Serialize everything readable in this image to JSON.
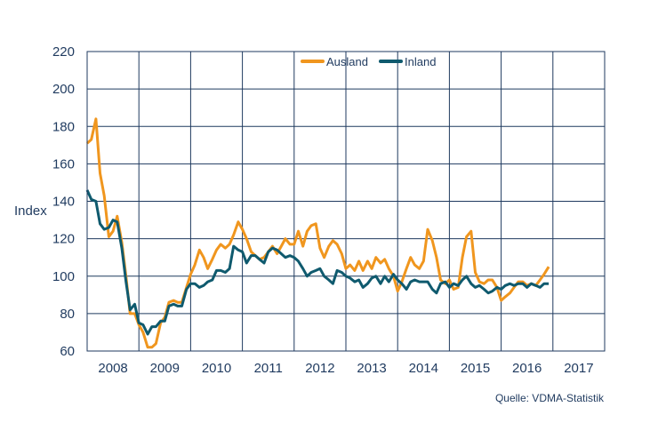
{
  "chart_data": {
    "type": "line",
    "ylabel": "Index",
    "ylim": [
      60,
      220
    ],
    "yticks": [
      60,
      80,
      100,
      120,
      140,
      160,
      180,
      200,
      220
    ],
    "xlim": [
      2008,
      2018
    ],
    "xticks": [
      "2008",
      "2009",
      "2010",
      "2011",
      "2012",
      "2013",
      "2014",
      "2015",
      "2016",
      "2017"
    ],
    "grid": true,
    "legend": "top-center",
    "source": "Quelle: VDMA-Statistik",
    "series": [
      {
        "name": "Ausland",
        "color": "#f0961e",
        "x": [
          2008.0,
          2008.08,
          2008.17,
          2008.25,
          2008.33,
          2008.42,
          2008.5,
          2008.58,
          2008.67,
          2008.75,
          2008.83,
          2008.92,
          2009.0,
          2009.08,
          2009.17,
          2009.25,
          2009.33,
          2009.42,
          2009.5,
          2009.58,
          2009.67,
          2009.75,
          2009.83,
          2009.92,
          2010.0,
          2010.08,
          2010.17,
          2010.25,
          2010.33,
          2010.42,
          2010.5,
          2010.58,
          2010.67,
          2010.75,
          2010.83,
          2010.92,
          2011.0,
          2011.08,
          2011.17,
          2011.25,
          2011.33,
          2011.42,
          2011.5,
          2011.58,
          2011.67,
          2011.75,
          2011.83,
          2011.92,
          2012.0,
          2012.08,
          2012.17,
          2012.25,
          2012.33,
          2012.42,
          2012.5,
          2012.58,
          2012.67,
          2012.75,
          2012.83,
          2012.92,
          2013.0,
          2013.08,
          2013.17,
          2013.25,
          2013.33,
          2013.42,
          2013.5,
          2013.58,
          2013.67,
          2013.75,
          2013.83,
          2013.92,
          2014.0,
          2014.08,
          2014.17,
          2014.25,
          2014.33,
          2014.42,
          2014.5,
          2014.58,
          2014.67,
          2014.75,
          2014.83,
          2014.92,
          2015.0,
          2015.08,
          2015.17,
          2015.25,
          2015.33,
          2015.42,
          2015.5,
          2015.58,
          2015.67,
          2015.75,
          2015.83,
          2015.92,
          2016.0,
          2016.08,
          2016.17,
          2016.25,
          2016.33,
          2016.42,
          2016.5,
          2016.58,
          2016.67,
          2016.75,
          2016.83,
          2016.92
        ],
        "values": [
          171,
          173,
          184,
          155,
          143,
          121,
          124,
          132,
          118,
          100,
          80,
          80,
          74,
          70,
          62,
          62,
          64,
          75,
          78,
          86,
          87,
          86,
          86,
          94,
          101,
          106,
          114,
          110,
          104,
          109,
          114,
          117,
          115,
          117,
          122,
          129,
          125,
          120,
          113,
          111,
          109,
          110,
          113,
          116,
          112,
          116,
          120,
          117,
          117,
          124,
          116,
          124,
          127,
          128,
          115,
          110,
          116,
          119,
          117,
          112,
          104,
          106,
          103,
          108,
          103,
          108,
          104,
          110,
          107,
          109,
          104,
          100,
          92,
          97,
          104,
          110,
          106,
          104,
          108,
          125,
          119,
          110,
          98,
          96,
          98,
          93,
          94,
          110,
          121,
          124,
          102,
          97,
          96,
          98,
          98,
          94,
          87,
          89,
          91,
          94,
          97,
          97,
          95,
          96,
          95,
          98,
          101,
          105
        ]
      },
      {
        "name": "Inland",
        "color": "#0f5a6e",
        "x": [
          2008.0,
          2008.08,
          2008.17,
          2008.25,
          2008.33,
          2008.42,
          2008.5,
          2008.58,
          2008.67,
          2008.75,
          2008.83,
          2008.92,
          2009.0,
          2009.08,
          2009.17,
          2009.25,
          2009.33,
          2009.42,
          2009.5,
          2009.58,
          2009.67,
          2009.75,
          2009.83,
          2009.92,
          2010.0,
          2010.08,
          2010.17,
          2010.25,
          2010.33,
          2010.42,
          2010.5,
          2010.58,
          2010.67,
          2010.75,
          2010.83,
          2010.92,
          2011.0,
          2011.08,
          2011.17,
          2011.25,
          2011.33,
          2011.42,
          2011.5,
          2011.58,
          2011.67,
          2011.75,
          2011.83,
          2011.92,
          2012.0,
          2012.08,
          2012.17,
          2012.25,
          2012.33,
          2012.42,
          2012.5,
          2012.58,
          2012.67,
          2012.75,
          2012.83,
          2012.92,
          2013.0,
          2013.08,
          2013.17,
          2013.25,
          2013.33,
          2013.42,
          2013.5,
          2013.58,
          2013.67,
          2013.75,
          2013.83,
          2013.92,
          2014.0,
          2014.08,
          2014.17,
          2014.25,
          2014.33,
          2014.42,
          2014.5,
          2014.58,
          2014.67,
          2014.75,
          2014.83,
          2014.92,
          2015.0,
          2015.08,
          2015.17,
          2015.25,
          2015.33,
          2015.42,
          2015.5,
          2015.58,
          2015.67,
          2015.75,
          2015.83,
          2015.92,
          2016.0,
          2016.08,
          2016.17,
          2016.25,
          2016.33,
          2016.42,
          2016.5,
          2016.58,
          2016.67,
          2016.75,
          2016.83,
          2016.92
        ],
        "values": [
          146,
          141,
          140,
          128,
          125,
          126,
          130,
          129,
          115,
          97,
          82,
          85,
          75,
          74,
          69,
          73,
          73,
          76,
          76,
          84,
          85,
          84,
          84,
          93,
          96,
          96,
          94,
          95,
          97,
          98,
          103,
          103,
          102,
          104,
          116,
          114,
          113,
          107,
          111,
          111,
          109,
          107,
          113,
          115,
          114,
          112,
          110,
          111,
          110,
          108,
          104,
          100,
          102,
          103,
          104,
          100,
          98,
          96,
          103,
          102,
          100,
          99,
          97,
          98,
          94,
          96,
          99,
          100,
          96,
          100,
          97,
          101,
          98,
          96,
          93,
          97,
          98,
          97,
          97,
          97,
          93,
          91,
          96,
          97,
          94,
          96,
          95,
          98,
          100,
          96,
          94,
          95,
          93,
          91,
          92,
          94,
          93,
          95,
          96,
          95,
          96,
          96,
          94,
          96,
          95,
          94,
          96,
          96
        ]
      }
    ]
  }
}
